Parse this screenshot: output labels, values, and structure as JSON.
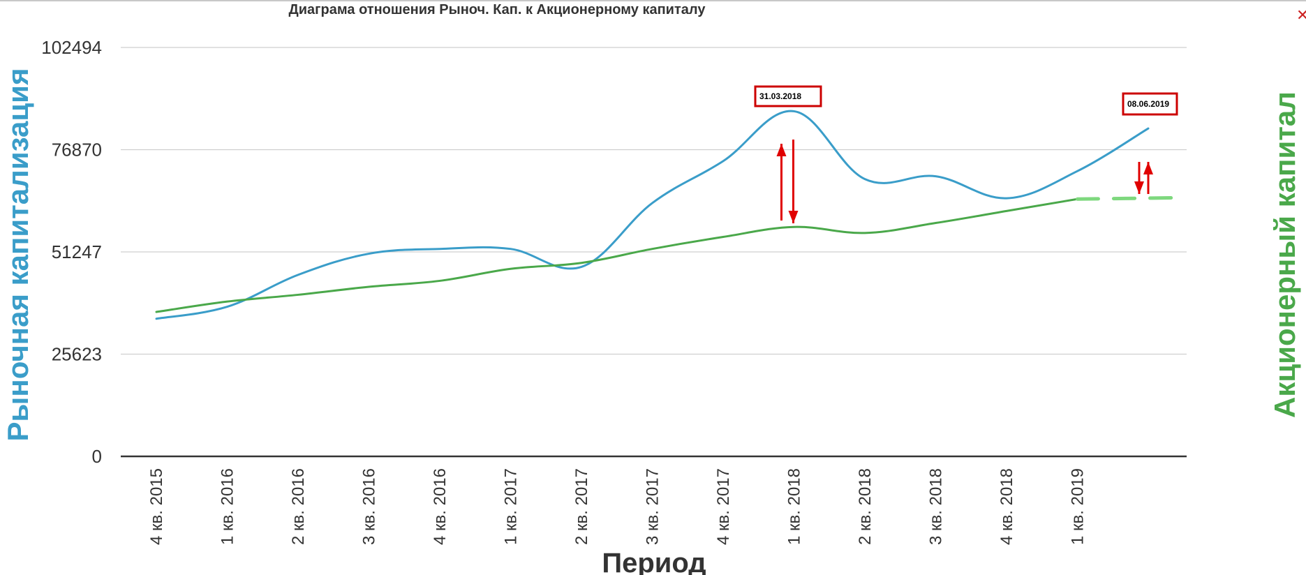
{
  "chart_data": {
    "type": "line",
    "title": "Диаграма отношения Рыноч. Кап. к Акционерному капиталу",
    "xlabel": "Период",
    "ylabel": "Рыночная капитализация",
    "ylabel_right": "Акционерный капитал",
    "categories": [
      "4 кв. 2015",
      "1 кв. 2016",
      "2 кв. 2016",
      "3 кв. 2016",
      "4 кв. 2016",
      "1 кв. 2017",
      "2 кв. 2017",
      "3 кв. 2017",
      "4 кв. 2017",
      "1 кв. 2018",
      "2 кв. 2018",
      "3 кв. 2018",
      "4 кв. 2018",
      "1 кв. 2019"
    ],
    "yticks": [
      "0",
      "25623",
      "51247",
      "76870",
      "102494"
    ],
    "ylim": [
      0,
      102494
    ],
    "grid": true,
    "series": [
      {
        "color": "#3a9dc9",
        "x": [
          0,
          1,
          2,
          3,
          4,
          5,
          6,
          7,
          8,
          9,
          10,
          11,
          12,
          13,
          14
        ],
        "values": [
          34500,
          37500,
          45500,
          50800,
          52000,
          52000,
          47500,
          63500,
          74000,
          86500,
          69500,
          70200,
          64700,
          71500,
          82200
        ]
      },
      {
        "color": "#4aa84a",
        "x": [
          0,
          1,
          2,
          3,
          4,
          5,
          6,
          7,
          8,
          9,
          10,
          11,
          12,
          13
        ],
        "values": [
          36200,
          38800,
          40500,
          42500,
          44000,
          47000,
          48500,
          52000,
          55000,
          57500,
          56000,
          58500,
          61500,
          64500
        ]
      },
      {
        "color": "#7ed87e",
        "dashed": true,
        "x": [
          13,
          14.35
        ],
        "values": [
          64500,
          64800
        ]
      }
    ],
    "annotations": [
      {
        "label": "31.03.2018",
        "x": 9,
        "border_color": "#cc0000"
      },
      {
        "label": "08.06.2019",
        "x": 14,
        "border_color": "#cc0000"
      }
    ],
    "arrow_color": "#e00000"
  },
  "close_icon": "close-icon"
}
